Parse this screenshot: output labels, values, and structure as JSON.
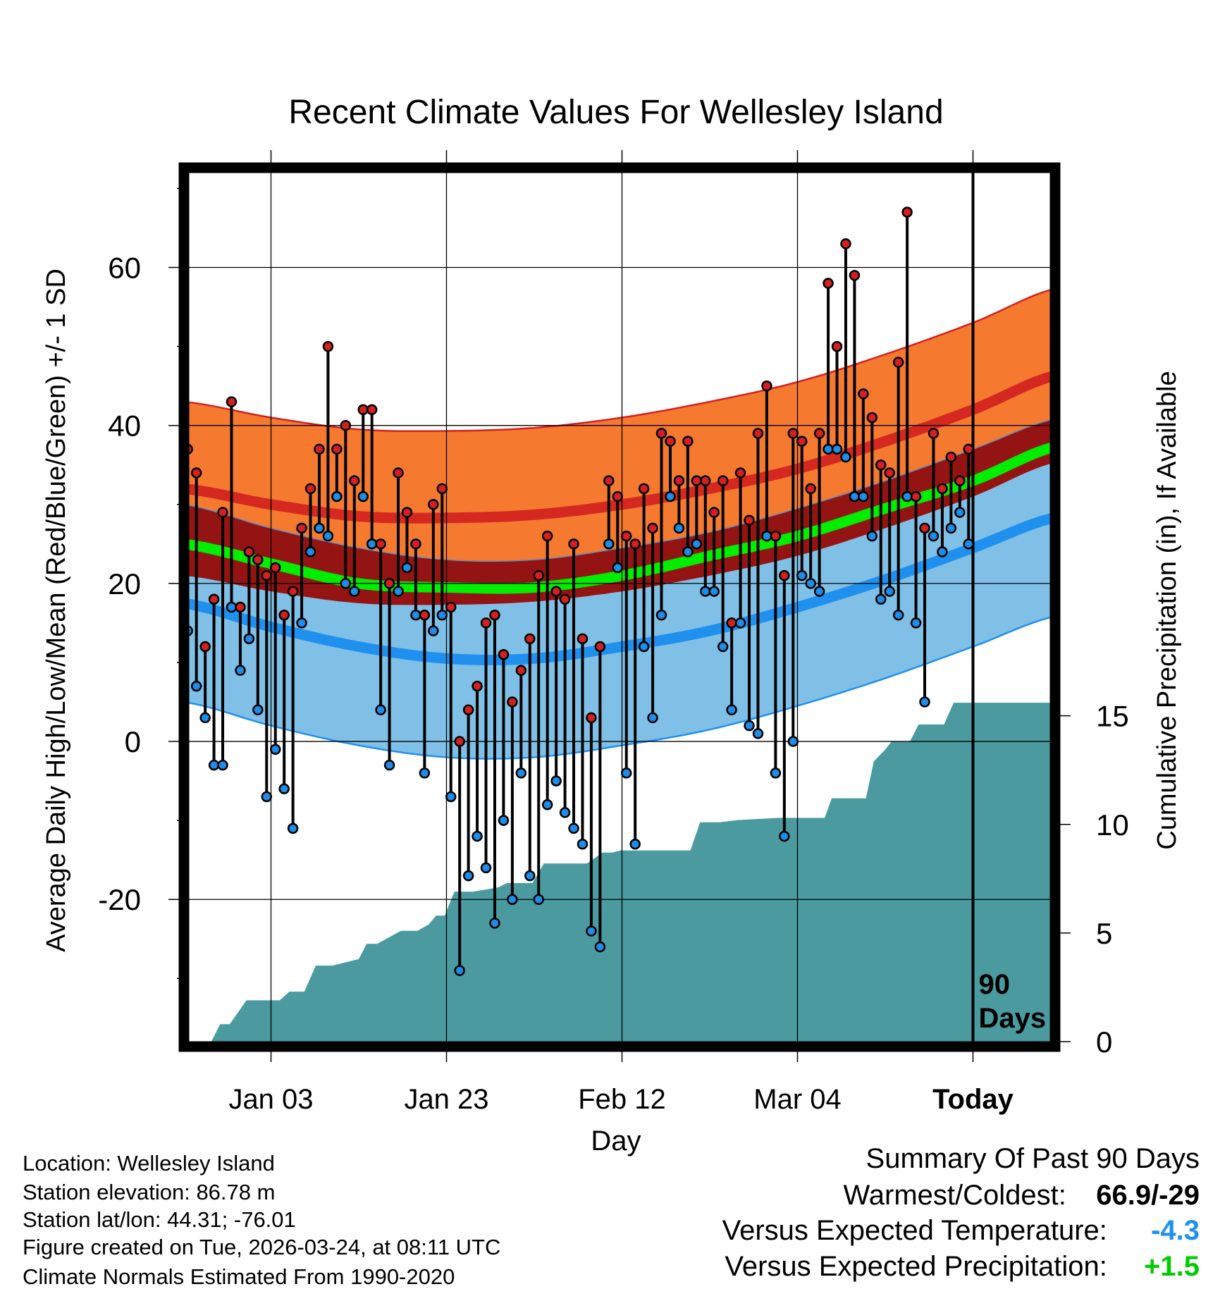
{
  "chart_data": {
    "type": "line",
    "title": "Recent Climate Values For Wellesley Island",
    "xlabel": "Day",
    "ylabel": "Average Daily High/Low/Mean (Red/Blue/Green) +/- 1 SD",
    "y2label": "Cumulative Precipitation (in), If Available",
    "xlim": [
      0,
      100
    ],
    "ylim": [
      -38,
      72
    ],
    "y2lim": [
      0,
      40
    ],
    "y_ticks": [
      60,
      40,
      20,
      0,
      -20
    ],
    "y_tick_labels": [
      "60",
      "40",
      "20",
      "0",
      "-20"
    ],
    "y2_ticks": [
      15,
      10,
      5,
      0
    ],
    "y2_tick_labels": [
      "15",
      "10",
      "5",
      "0"
    ],
    "x_ticks": [
      10,
      30,
      50,
      70,
      90
    ],
    "x_tick_labels": [
      "Jan 03",
      "Jan 23",
      "Feb 12",
      "Mar 04",
      "Today"
    ],
    "marker_label_line1": "90",
    "marker_label_line2": "Days",
    "marker_day": 90,
    "normal_high": {
      "x": [
        0,
        10,
        20,
        30,
        40,
        50,
        60,
        70,
        80,
        90,
        100
      ],
      "mean": [
        32.0,
        30.0,
        28.5,
        28.3,
        28.7,
        30.0,
        32.0,
        34.5,
        38.0,
        42.0,
        46.5
      ],
      "sd": 11.0
    },
    "normal_low": {
      "x": [
        0,
        10,
        20,
        30,
        40,
        50,
        60,
        70,
        80,
        90,
        100
      ],
      "mean": [
        17.5,
        14.5,
        12.0,
        10.5,
        10.5,
        12.0,
        14.0,
        17.0,
        20.5,
        24.5,
        28.5
      ],
      "sd": 12.5
    },
    "normal_mean": {
      "x": [
        0,
        10,
        20,
        30,
        40,
        50,
        60,
        70,
        80,
        90,
        100
      ],
      "mean": [
        25.0,
        22.5,
        20.0,
        19.5,
        19.5,
        21.0,
        23.5,
        26.0,
        29.5,
        33.0,
        37.5
      ]
    },
    "highs": [
      37,
      34,
      12,
      18,
      29,
      43,
      17,
      24,
      23,
      21,
      22,
      16,
      19,
      27,
      32,
      37,
      50,
      37,
      40,
      33,
      42,
      42,
      25,
      20,
      34,
      29,
      25,
      16,
      30,
      32,
      17,
      0,
      4,
      7,
      15,
      16,
      11,
      5,
      9,
      13,
      21,
      26,
      19,
      18,
      25,
      13,
      3,
      12,
      33,
      31,
      26,
      25,
      32,
      27,
      39,
      38,
      33,
      38,
      33,
      33,
      29,
      33,
      15,
      34,
      28,
      39,
      45,
      26,
      21,
      39,
      38,
      32,
      39,
      58,
      50,
      63,
      59,
      44,
      41,
      35,
      34,
      48,
      67,
      31,
      27,
      39,
      32,
      36,
      33,
      37
    ],
    "lows": [
      14,
      7,
      3,
      -3,
      -3,
      17,
      9,
      13,
      4,
      -7,
      -1,
      -6,
      -11,
      15,
      24,
      27,
      26,
      31,
      20,
      19,
      31,
      25,
      4,
      -3,
      19,
      22,
      16,
      -4,
      14,
      16,
      -7,
      -29,
      -17,
      -12,
      -16,
      -23,
      -10,
      -20,
      -4,
      -17,
      -20,
      -8,
      -5,
      -9,
      -11,
      -13,
      -24,
      -26,
      25,
      22,
      -4,
      -13,
      12,
      3,
      16,
      31,
      27,
      24,
      25,
      19,
      19,
      12,
      4,
      15,
      2,
      1,
      26,
      -4,
      -12,
      0,
      21,
      20,
      19,
      37,
      37,
      36,
      31,
      31,
      26,
      18,
      19,
      16,
      31,
      15,
      5,
      26,
      24,
      27,
      29,
      25
    ],
    "precip_cumulative": {
      "x": [
        0,
        3.2,
        4.2,
        5.3,
        7.2,
        7.9,
        11.0,
        12.1,
        13.8,
        15.1,
        17.0,
        20.0,
        20.9,
        22.1,
        24.8,
        26.7,
        28.0,
        28.8,
        29.8,
        30.9,
        33.0,
        35.9,
        36.9,
        39.8,
        41.1,
        43.2,
        46.0,
        47.8,
        48.9,
        49.8,
        50.9,
        57.8,
        58.9,
        61.1,
        63.2,
        67.9,
        73.1,
        73.9,
        77.8,
        78.7,
        79.9,
        80.7,
        82.8,
        83.8,
        86.7,
        87.8,
        90.0,
        100.0
      ],
      "y": [
        0,
        0,
        0.8,
        0.8,
        1.9,
        1.9,
        1.9,
        2.3,
        2.3,
        3.5,
        3.5,
        3.8,
        4.5,
        4.5,
        5.1,
        5.1,
        5.4,
        5.8,
        5.8,
        6.9,
        6.9,
        7.1,
        7.3,
        7.3,
        8.2,
        8.2,
        8.2,
        8.7,
        8.7,
        8.8,
        8.8,
        8.8,
        10.1,
        10.1,
        10.2,
        10.3,
        10.3,
        11.2,
        11.2,
        12.9,
        13.4,
        13.8,
        13.8,
        14.6,
        14.6,
        15.6,
        15.6,
        15.6
      ]
    }
  },
  "info": {
    "location": "Location: Wellesley Island",
    "elevation": "Station elevation: 86.78 m",
    "latlon": "Station lat/lon: 44.31; -76.01",
    "created": "Figure created on Tue, 2026-03-24, at 08:11 UTC",
    "normals": "Climate Normals Estimated From 1990-2020"
  },
  "summary": {
    "title": "Summary Of Past 90 Days",
    "warm_cold_label": "Warmest/Coldest:",
    "warm_cold_value": "66.9/-29",
    "temp_label": "Versus Expected Temperature:",
    "temp_value": "-4.3",
    "precip_label": "Versus Expected Precipitation:",
    "precip_value": "+1.5"
  },
  "colors": {
    "high_band": "#f57a30",
    "high_line": "#d42820",
    "high_edge": "#d42020",
    "low_band": "#80c0e6",
    "low_line": "#2090ee",
    "mean_line": "#00ee00",
    "overlap": "#941414",
    "precip": "#4a9aa0",
    "high_marker": "#d42020",
    "low_marker": "#1e8ce8",
    "temp_value": "#2090ee",
    "precip_value": "#00cc00"
  }
}
